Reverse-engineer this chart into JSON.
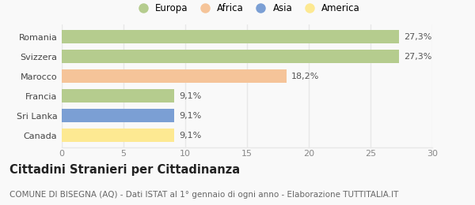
{
  "categories": [
    "Canada",
    "Sri Lanka",
    "Francia",
    "Marocco",
    "Svizzera",
    "Romania"
  ],
  "values": [
    9.1,
    9.1,
    9.1,
    18.2,
    27.3,
    27.3
  ],
  "labels": [
    "9,1%",
    "9,1%",
    "9,1%",
    "18,2%",
    "27,3%",
    "27,3%"
  ],
  "colors": [
    "#fde992",
    "#7b9fd4",
    "#b5cc8e",
    "#f5c499",
    "#b5cc8e",
    "#b5cc8e"
  ],
  "legend_labels": [
    "Europa",
    "Africa",
    "Asia",
    "America"
  ],
  "legend_colors": [
    "#b5cc8e",
    "#f5c499",
    "#7b9fd4",
    "#fde992"
  ],
  "xlim": [
    0,
    30
  ],
  "xticks": [
    0,
    5,
    10,
    15,
    20,
    25,
    30
  ],
  "title": "Cittadini Stranieri per Cittadinanza",
  "subtitle": "COMUNE DI BISEGNA (AQ) - Dati ISTAT al 1° gennaio di ogni anno - Elaborazione TUTTITALIA.IT",
  "bg_color": "#f9f9f9",
  "grid_color": "#e8e8e8",
  "bar_height": 0.68,
  "label_fontsize": 8,
  "tick_fontsize": 8,
  "title_fontsize": 10.5,
  "subtitle_fontsize": 7.5,
  "legend_fontsize": 8.5
}
